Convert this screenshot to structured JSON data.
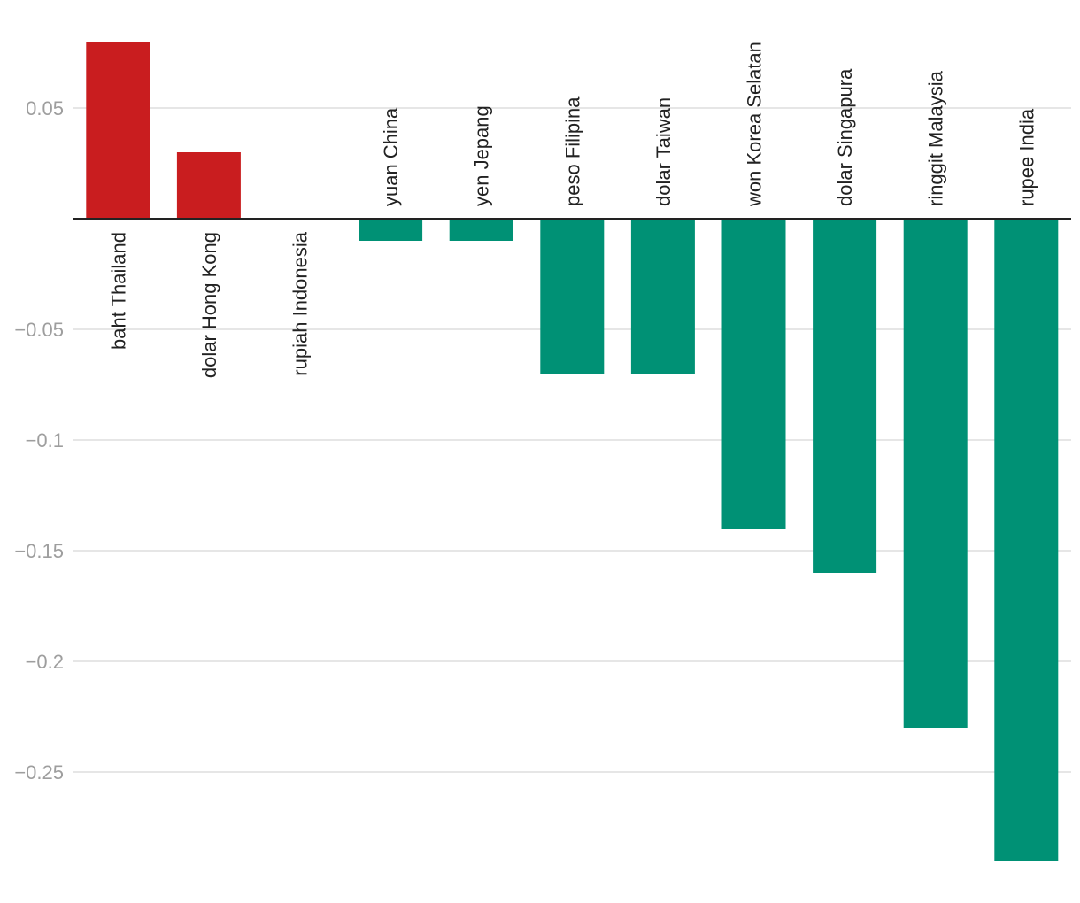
{
  "chart_data": {
    "type": "bar",
    "title": "",
    "xlabel": "",
    "ylabel": "",
    "categories": [
      "baht Thailand",
      "dolar Hong Kong",
      "rupiah Indonesia",
      "yuan China",
      "yen Jepang",
      "peso Filipina",
      "dolar Taiwan",
      "won Korea Selatan",
      "dolar Singapura",
      "ringgit Malaysia",
      "rupee India"
    ],
    "values": [
      0.08,
      0.03,
      0,
      -0.01,
      -0.01,
      -0.07,
      -0.07,
      -0.14,
      -0.16,
      -0.23,
      -0.29
    ],
    "ylim": [
      -0.3,
      0.08
    ],
    "yticks": [
      0.05,
      -0.05,
      -0.1,
      -0.15,
      -0.2,
      -0.25
    ],
    "ytick_labels": [
      "0.05",
      "−0.05",
      "−0.1",
      "−0.15",
      "−0.2",
      "−0.25"
    ],
    "grid": true,
    "legend": "none",
    "colors": {
      "positive": "#c91d1f",
      "negative": "#009175",
      "gridline": "#dddddd",
      "tick_text": "#9e9e9e",
      "label_text": "#222222",
      "baseline": "#222222"
    }
  }
}
